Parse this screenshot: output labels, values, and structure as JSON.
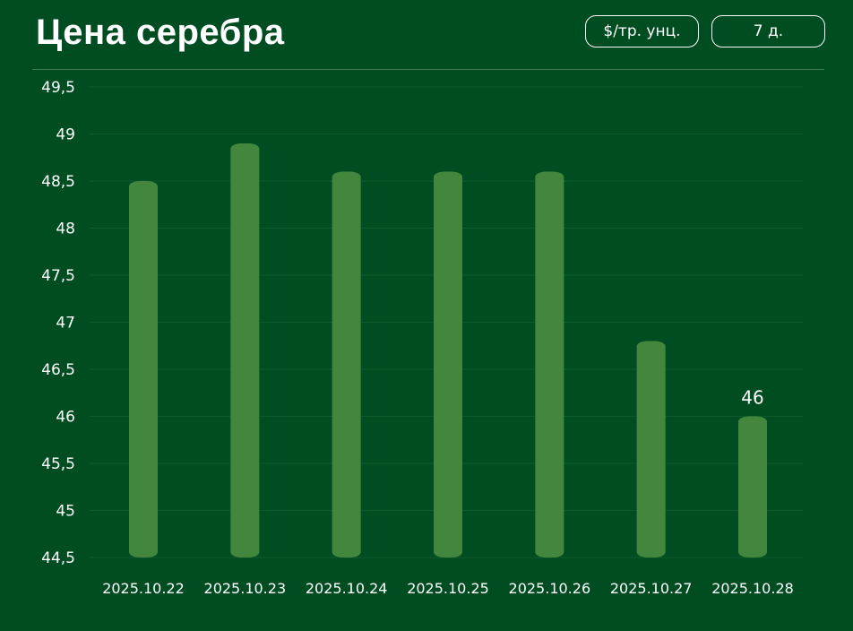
{
  "header": {
    "title": "Цена серебра",
    "unit_button": "$/тр. унц.",
    "period_button": "7 д."
  },
  "colors": {
    "background": "#004d22",
    "bar": "#43873e",
    "gridline": "#0f5a2c",
    "text": "#ffffff"
  },
  "chart_data": {
    "type": "bar",
    "categories": [
      "2025.10.22",
      "2025.10.23",
      "2025.10.24",
      "2025.10.25",
      "2025.10.26",
      "2025.10.27",
      "2025.10.28"
    ],
    "values": [
      48.5,
      48.9,
      48.6,
      48.6,
      48.6,
      46.8,
      46.0
    ],
    "ylim": [
      44.5,
      49.5
    ],
    "yticks": [
      "44,5",
      "45",
      "45,5",
      "46",
      "46,5",
      "47",
      "47,5",
      "48",
      "48,5",
      "49",
      "49,5"
    ],
    "data_labels": [
      {
        "category": "2025.10.28",
        "text": "46"
      }
    ],
    "grid": true,
    "xlabel": "",
    "ylabel": ""
  }
}
